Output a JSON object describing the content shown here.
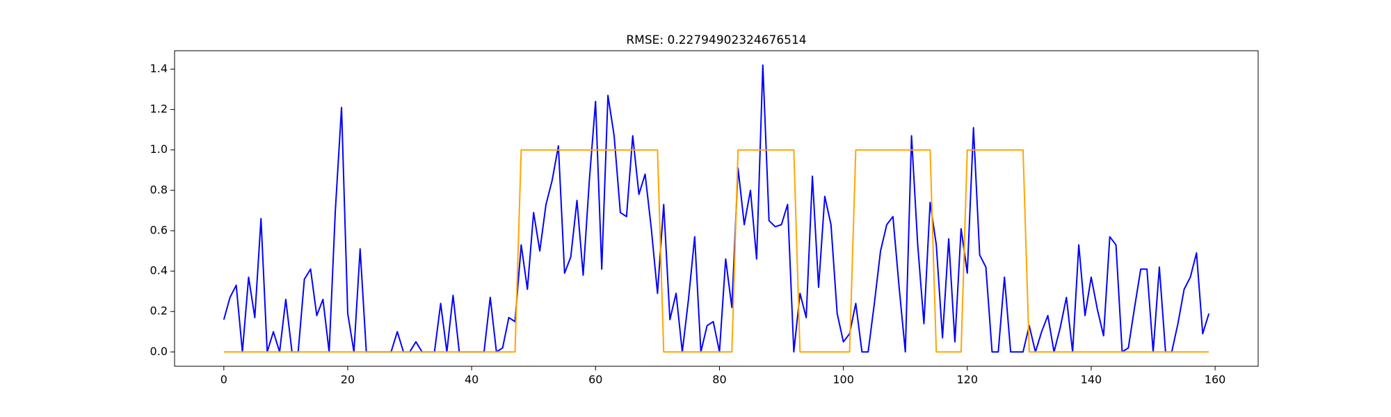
{
  "chart_data": {
    "type": "line",
    "title": "RMSE: 0.22794902324676514",
    "x": [
      0,
      1,
      2,
      3,
      4,
      5,
      6,
      7,
      8,
      9,
      10,
      11,
      12,
      13,
      14,
      15,
      16,
      17,
      18,
      19,
      20,
      21,
      22,
      23,
      24,
      25,
      26,
      27,
      28,
      29,
      30,
      31,
      32,
      33,
      34,
      35,
      36,
      37,
      38,
      39,
      40,
      41,
      42,
      43,
      44,
      45,
      46,
      47,
      48,
      49,
      50,
      51,
      52,
      53,
      54,
      55,
      56,
      57,
      58,
      59,
      60,
      61,
      62,
      63,
      64,
      65,
      66,
      67,
      68,
      69,
      70,
      71,
      72,
      73,
      74,
      75,
      76,
      77,
      78,
      79,
      80,
      81,
      82,
      83,
      84,
      85,
      86,
      87,
      88,
      89,
      90,
      91,
      92,
      93,
      94,
      95,
      96,
      97,
      98,
      99,
      100,
      101,
      102,
      103,
      104,
      105,
      106,
      107,
      108,
      109,
      110,
      111,
      112,
      113,
      114,
      115,
      116,
      117,
      118,
      119,
      120,
      121,
      122,
      123,
      124,
      125,
      126,
      127,
      128,
      129,
      130,
      131,
      132,
      133,
      134,
      135,
      136,
      137,
      138,
      139,
      140,
      141,
      142,
      143,
      144,
      145,
      146,
      147,
      148,
      149,
      150,
      151,
      152,
      153,
      154,
      155,
      156,
      157,
      158,
      159
    ],
    "series": [
      {
        "color": "#0000ff",
        "values": [
          0.16,
          0.27,
          0.33,
          0,
          0.37,
          0.17,
          0.66,
          0,
          0.1,
          0,
          0.26,
          0,
          0,
          0.36,
          0.41,
          0.18,
          0.26,
          0,
          0.7,
          1.21,
          0.19,
          0,
          0.51,
          0,
          0,
          0,
          0,
          0,
          0.1,
          0,
          0,
          0.05,
          0,
          0,
          0,
          0.24,
          0,
          0.28,
          0,
          0,
          0,
          0,
          0,
          0.27,
          0,
          0.02,
          0.17,
          0.15,
          0.53,
          0.31,
          0.69,
          0.5,
          0.73,
          0.85,
          1.02,
          0.39,
          0.47,
          0.75,
          0.38,
          0.85,
          1.24,
          0.41,
          1.27,
          1.07,
          0.69,
          0.67,
          1.07,
          0.78,
          0.88,
          0.61,
          0.29,
          0.73,
          0.16,
          0.29,
          0,
          0.26,
          0.57,
          0,
          0.13,
          0.15,
          0,
          0.46,
          0.22,
          0.91,
          0.63,
          0.8,
          0.46,
          1.42,
          0.65,
          0.62,
          0.63,
          0.73,
          0,
          0.29,
          0.17,
          0.87,
          0.32,
          0.77,
          0.63,
          0.19,
          0.05,
          0.09,
          0.24,
          0,
          0,
          0.24,
          0.5,
          0.63,
          0.67,
          0.32,
          0,
          1.07,
          0.53,
          0.14,
          0.74,
          0.53,
          0.07,
          0.56,
          0.05,
          0.61,
          0.39,
          1.11,
          0.48,
          0.42,
          0,
          0,
          0.37,
          0,
          0,
          0,
          0.13,
          0,
          0.1,
          0.18,
          0,
          0.12,
          0.27,
          0,
          0.53,
          0.18,
          0.37,
          0.21,
          0.08,
          0.57,
          0.53,
          0,
          0.02,
          0.22,
          0.41,
          0.41,
          0,
          0.42,
          0,
          0,
          0.14,
          0.31,
          0.37,
          0.49,
          0.09,
          0.19
        ]
      },
      {
        "color": "#ffa500",
        "values": [
          0,
          0,
          0,
          0,
          0,
          0,
          0,
          0,
          0,
          0,
          0,
          0,
          0,
          0,
          0,
          0,
          0,
          0,
          0,
          0,
          0,
          0,
          0,
          0,
          0,
          0,
          0,
          0,
          0,
          0,
          0,
          0,
          0,
          0,
          0,
          0,
          0,
          0,
          0,
          0,
          0,
          0,
          0,
          0,
          0,
          0,
          0,
          0,
          1,
          1,
          1,
          1,
          1,
          1,
          1,
          1,
          1,
          1,
          1,
          1,
          1,
          1,
          1,
          1,
          1,
          1,
          1,
          1,
          1,
          1,
          1,
          0,
          0,
          0,
          0,
          0,
          0,
          0,
          0,
          0,
          0,
          0,
          0,
          1,
          1,
          1,
          1,
          1,
          1,
          1,
          1,
          1,
          1,
          0,
          0,
          0,
          0,
          0,
          0,
          0,
          0,
          0,
          1,
          1,
          1,
          1,
          1,
          1,
          1,
          1,
          1,
          1,
          1,
          1,
          1,
          0,
          0,
          0,
          0,
          0,
          1,
          1,
          1,
          1,
          1,
          1,
          1,
          1,
          1,
          1,
          0,
          0,
          0,
          0,
          0,
          0,
          0,
          0,
          0,
          0,
          0,
          0,
          0,
          0,
          0,
          0,
          0,
          0,
          0,
          0,
          0,
          0,
          0,
          0,
          0,
          0,
          0,
          0,
          0,
          0
        ]
      }
    ],
    "xlim": [
      -7.95,
      166.95
    ],
    "ylim": [
      -0.071,
      1.491
    ],
    "xticks": [
      0,
      20,
      40,
      60,
      80,
      100,
      120,
      140,
      160
    ],
    "yticks": [
      {
        "value": 0,
        "label": "0.0"
      },
      0.2,
      0.4,
      0.6,
      0.8,
      {
        "value": 1,
        "label": "1.0"
      },
      1.2,
      1.4
    ],
    "grid": false
  }
}
